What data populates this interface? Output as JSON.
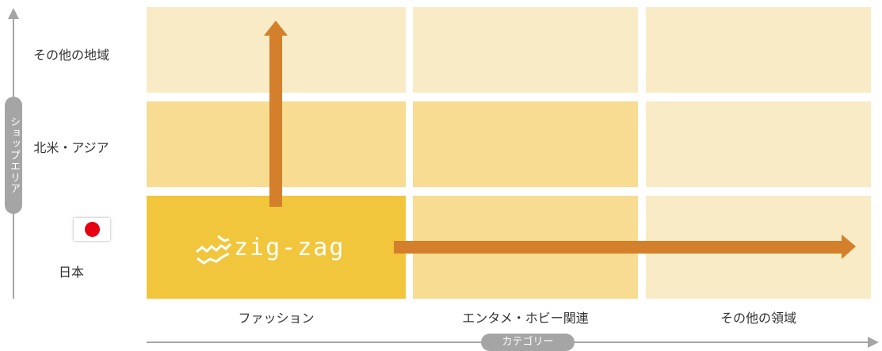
{
  "yaxis": {
    "label": "ショップエリア"
  },
  "xaxis": {
    "label": "カテゴリー"
  },
  "rows": [
    {
      "label": "その他の地域"
    },
    {
      "label": "北米・アジア"
    },
    {
      "label": "日本",
      "flag": "japan-flag-icon"
    }
  ],
  "columns": [
    {
      "label": "ファッション"
    },
    {
      "label": "エンタメ・ホビー関連"
    },
    {
      "label": "その他の領域"
    }
  ],
  "logo": {
    "text": "zig-zag",
    "icon": "zigzag-logo-icon"
  },
  "colors": {
    "highlight_cell": "#f2c63c",
    "mid_cell": "#f7dc92",
    "light_cell": "#f9ebc5",
    "arrow": "#d47f2b",
    "axis": "#a5a5a5",
    "flag_red": "#e60012"
  }
}
